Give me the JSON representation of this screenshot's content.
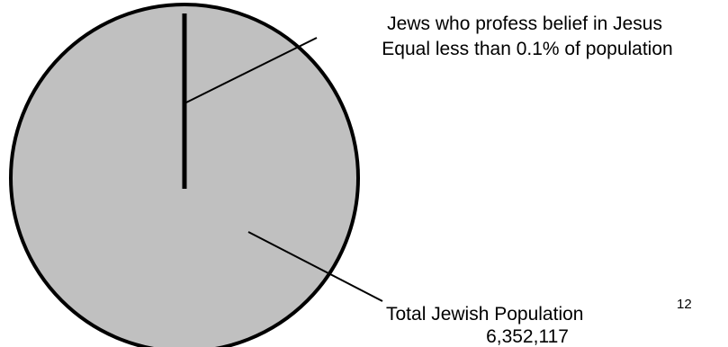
{
  "chart_data": {
    "type": "pie",
    "title": "",
    "slices": [
      {
        "label_lines": [
          "Jews who profess belief in Jesus",
          "Equal less than 0.1% of population"
        ],
        "value_percent": 0.1
      },
      {
        "label": "Total Jewish Population",
        "footnote": "12",
        "value_text": "6,352,117",
        "value": 6352117
      }
    ],
    "colors": {
      "fill": "#c0c0c0",
      "stroke": "#000000",
      "background": "#ffffff"
    }
  }
}
